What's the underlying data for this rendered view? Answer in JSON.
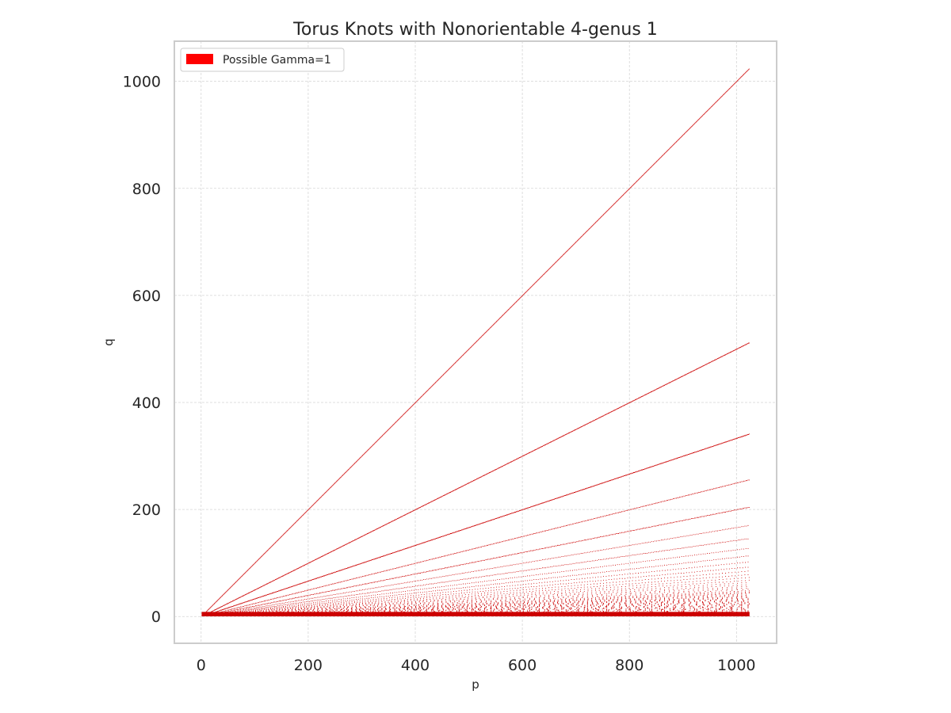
{
  "chart_data": {
    "type": "scatter",
    "title": "Torus Knots with Nonorientable 4-genus 1",
    "xlabel": "p",
    "ylabel": "q",
    "xlim": [
      -50,
      1075
    ],
    "ylim": [
      -50,
      1075
    ],
    "xticks": [
      0,
      200,
      400,
      600,
      800,
      1000
    ],
    "yticks": [
      0,
      200,
      400,
      600,
      800,
      1000
    ],
    "grid": true,
    "legend_position": "top-left",
    "series": [
      {
        "name": "Possible Gamma=1",
        "color": "#cc0000",
        "legend_color": "#ff0000",
        "rule": "q = floor(p / k) for divisors k = 1..1024 of the p range, p from 1 to 1023",
        "p_range": [
          1,
          1023
        ]
      }
    ]
  }
}
